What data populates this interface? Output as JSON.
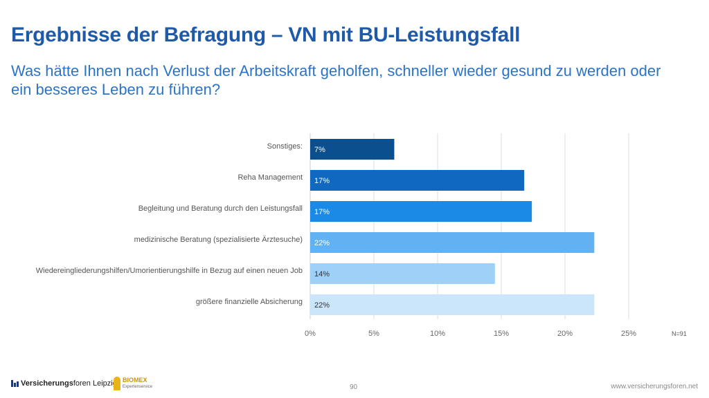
{
  "header": {
    "title": "Ergebnisse der Befragung – VN mit BU-Leistungsfall",
    "subtitle": "Was hätte Ihnen nach Verlust der Arbeitskraft geholfen, schneller wieder gesund zu werden oder ein besseres Leben zu führen?"
  },
  "chart_data": {
    "type": "bar",
    "orientation": "horizontal",
    "categories": [
      "Sonstiges:",
      "Reha Management",
      "Begleitung und Beratung durch den Leistungsfall",
      "medizinische Beratung (spezialisierte Ärztesuche)",
      "Wiedereingliederungshilfen/Umorientierungshilfe in Bezug auf einen neuen Job",
      "größere finanzielle Absicherung"
    ],
    "values": [
      6.6,
      16.8,
      17.4,
      22.3,
      14.5,
      22.3
    ],
    "data_labels": [
      "7%",
      "17%",
      "17%",
      "22%",
      "14%",
      "22%"
    ],
    "colors": [
      "#0b4f8f",
      "#1068c0",
      "#1a8ae6",
      "#62b1f2",
      "#9fd0f8",
      "#cbe6fb"
    ],
    "label_colors": [
      "#ffffff",
      "#ffffff",
      "#ffffff",
      "#ffffff",
      "#333333",
      "#333333"
    ],
    "xlim": [
      0,
      25
    ],
    "ticks": [
      0,
      5,
      10,
      15,
      20,
      25
    ],
    "tick_labels": [
      "0%",
      "5%",
      "10%",
      "15%",
      "20%",
      "25%"
    ],
    "grid": true,
    "note": "N=91",
    "title": "",
    "xlabel": "",
    "ylabel": ""
  },
  "footer": {
    "logo_bold": "Versicherungs",
    "logo_rest": "foren Leipzig",
    "partner_name": "BIOMEX",
    "partner_sub": "Expertenservice",
    "page_number": "90",
    "website": "www.versicherungsforen.net"
  }
}
